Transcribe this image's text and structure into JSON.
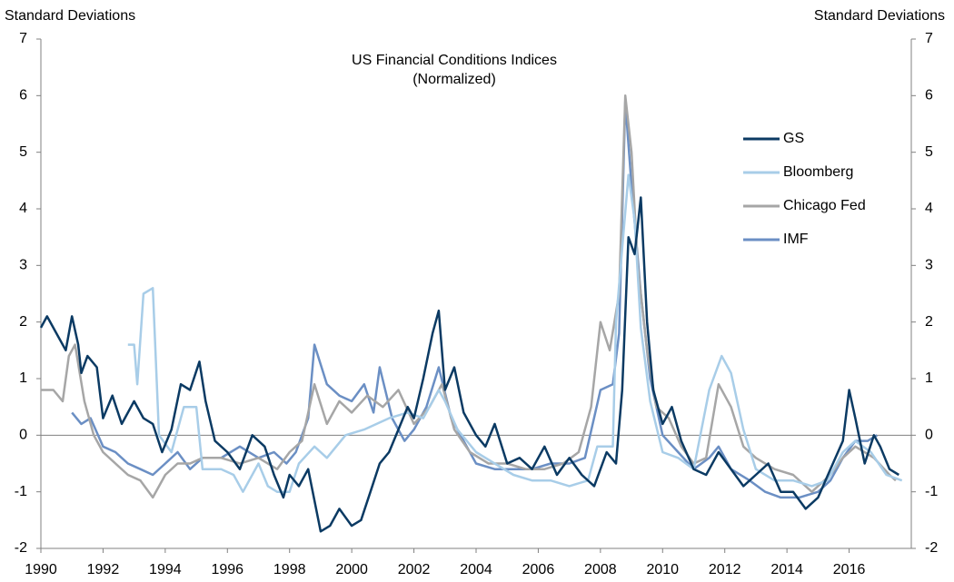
{
  "chart_data": {
    "type": "line",
    "title": "US Financial Conditions Indices",
    "subtitle": "(Normalized)",
    "y_label": "Standard Deviations",
    "y2_label": "Standard Deviations",
    "xlim": [
      1990,
      2018
    ],
    "xticks": [
      1990,
      1992,
      1994,
      1996,
      1998,
      2000,
      2002,
      2004,
      2006,
      2008,
      2010,
      2012,
      2014,
      2016
    ],
    "ylim": [
      -2,
      7
    ],
    "yticks": [
      -2,
      -1,
      0,
      1,
      2,
      3,
      4,
      5,
      6,
      7
    ],
    "y2lim": [
      -2,
      7
    ],
    "y2ticks": [
      -2,
      -1,
      0,
      1,
      2,
      3,
      4,
      5,
      6,
      7
    ],
    "legend": "upper right",
    "series": [
      {
        "name": "GS",
        "color": "#0b3a63",
        "x": [
          1990.0,
          1990.2,
          1990.5,
          1990.8,
          1991.0,
          1991.2,
          1991.3,
          1991.5,
          1991.8,
          1992.0,
          1992.3,
          1992.6,
          1993.0,
          1993.3,
          1993.6,
          1993.9,
          1994.2,
          1994.5,
          1994.8,
          1995.1,
          1995.3,
          1995.6,
          1996.0,
          1996.4,
          1996.8,
          1997.2,
          1997.5,
          1997.8,
          1998.0,
          1998.3,
          1998.6,
          1999.0,
          1999.3,
          1999.6,
          2000.0,
          2000.3,
          2000.6,
          2000.9,
          2001.2,
          2001.5,
          2001.8,
          2002.0,
          2002.3,
          2002.6,
          2002.8,
          2003.0,
          2003.3,
          2003.6,
          2004.0,
          2004.3,
          2004.6,
          2005.0,
          2005.4,
          2005.8,
          2006.2,
          2006.6,
          2007.0,
          2007.4,
          2007.8,
          2008.2,
          2008.5,
          2008.7,
          2008.9,
          2009.1,
          2009.3,
          2009.5,
          2009.7,
          2010.0,
          2010.3,
          2010.6,
          2011.0,
          2011.4,
          2011.8,
          2012.2,
          2012.6,
          2013.0,
          2013.4,
          2013.8,
          2014.2,
          2014.6,
          2015.0,
          2015.4,
          2015.8,
          2016.0,
          2016.2,
          2016.5,
          2016.8,
          2017.0,
          2017.3,
          2017.6
        ],
        "values": [
          1.9,
          2.1,
          1.8,
          1.5,
          2.1,
          1.6,
          1.1,
          1.4,
          1.2,
          0.3,
          0.7,
          0.2,
          0.6,
          0.3,
          0.2,
          -0.3,
          0.1,
          0.9,
          0.8,
          1.3,
          0.6,
          -0.1,
          -0.3,
          -0.6,
          0.0,
          -0.2,
          -0.7,
          -1.1,
          -0.7,
          -0.9,
          -0.6,
          -1.7,
          -1.6,
          -1.3,
          -1.6,
          -1.5,
          -1.0,
          -0.5,
          -0.3,
          0.1,
          0.5,
          0.3,
          1.0,
          1.8,
          2.2,
          0.8,
          1.2,
          0.4,
          0.0,
          -0.2,
          0.2,
          -0.5,
          -0.4,
          -0.6,
          -0.2,
          -0.7,
          -0.4,
          -0.7,
          -0.9,
          -0.3,
          -0.5,
          0.8,
          3.5,
          3.2,
          4.2,
          2.0,
          0.8,
          0.2,
          0.5,
          -0.1,
          -0.6,
          -0.7,
          -0.3,
          -0.6,
          -0.9,
          -0.7,
          -0.5,
          -1.0,
          -1.0,
          -1.3,
          -1.1,
          -0.6,
          -0.1,
          0.8,
          0.3,
          -0.5,
          0.0,
          -0.2,
          -0.6,
          -0.7
        ]
      },
      {
        "name": "Bloomberg",
        "color": "#a8cde8",
        "x": [
          1992.8,
          1993.0,
          1993.1,
          1993.3,
          1993.6,
          1993.8,
          1994.2,
          1994.6,
          1995.0,
          1995.2,
          1995.8,
          1996.2,
          1996.5,
          1997.0,
          1997.3,
          1997.6,
          1998.0,
          1998.3,
          1998.8,
          1999.2,
          1999.8,
          2000.4,
          2000.8,
          2001.2,
          2001.8,
          2002.3,
          2002.8,
          2003.0,
          2003.4,
          2004.0,
          2004.6,
          2005.2,
          2005.8,
          2006.4,
          2007.0,
          2007.6,
          2007.9,
          2008.4,
          2008.5,
          2008.7,
          2008.9,
          2009.1,
          2009.3,
          2009.6,
          2010.0,
          2010.5,
          2011.0,
          2011.5,
          2011.9,
          2012.2,
          2012.6,
          2013.0,
          2013.6,
          2014.2,
          2014.8,
          2015.3,
          2015.8,
          2016.2,
          2016.7,
          2017.2,
          2017.7
        ],
        "values": [
          1.6,
          1.6,
          0.9,
          2.5,
          2.6,
          0.0,
          -0.3,
          0.5,
          0.5,
          -0.6,
          -0.6,
          -0.7,
          -1.0,
          -0.5,
          -0.9,
          -1.0,
          -1.0,
          -0.5,
          -0.2,
          -0.4,
          0.0,
          0.1,
          0.2,
          0.3,
          0.4,
          0.3,
          0.8,
          0.6,
          0.1,
          -0.3,
          -0.5,
          -0.7,
          -0.8,
          -0.8,
          -0.9,
          -0.8,
          -0.2,
          -0.2,
          2.0,
          3.3,
          4.6,
          3.8,
          1.9,
          0.6,
          -0.3,
          -0.4,
          -0.6,
          0.8,
          1.4,
          1.1,
          0.1,
          -0.6,
          -0.8,
          -0.8,
          -0.9,
          -0.8,
          -0.3,
          -0.1,
          -0.3,
          -0.7,
          -0.8
        ]
      },
      {
        "name": "Chicago Fed",
        "color": "#a6a6a6",
        "x": [
          1990.0,
          1990.4,
          1990.7,
          1990.9,
          1991.1,
          1991.4,
          1991.7,
          1992.0,
          1992.4,
          1992.8,
          1993.2,
          1993.6,
          1994.0,
          1994.4,
          1994.8,
          1995.2,
          1995.8,
          1996.4,
          1997.0,
          1997.6,
          1998.0,
          1998.4,
          1998.8,
          1999.2,
          1999.6,
          2000.0,
          2000.5,
          2001.0,
          2001.5,
          2002.0,
          2002.5,
          2002.9,
          2003.3,
          2003.8,
          2004.4,
          2005.0,
          2005.6,
          2006.2,
          2006.8,
          2007.3,
          2007.7,
          2008.0,
          2008.3,
          2008.6,
          2008.8,
          2009.0,
          2009.2,
          2009.5,
          2009.8,
          2010.2,
          2010.6,
          2011.0,
          2011.4,
          2011.8,
          2012.2,
          2012.6,
          2013.0,
          2013.6,
          2014.2,
          2014.8,
          2015.4,
          2015.8,
          2016.2,
          2016.8,
          2017.3,
          2017.5
        ],
        "values": [
          0.8,
          0.8,
          0.6,
          1.4,
          1.6,
          0.6,
          0.0,
          -0.3,
          -0.5,
          -0.7,
          -0.8,
          -1.1,
          -0.7,
          -0.5,
          -0.5,
          -0.4,
          -0.4,
          -0.5,
          -0.4,
          -0.6,
          -0.3,
          -0.1,
          0.9,
          0.2,
          0.6,
          0.4,
          0.7,
          0.5,
          0.8,
          0.2,
          0.5,
          0.9,
          0.1,
          -0.3,
          -0.5,
          -0.5,
          -0.6,
          -0.6,
          -0.5,
          -0.3,
          0.5,
          2.0,
          1.5,
          2.5,
          6.0,
          5.0,
          3.0,
          1.5,
          0.5,
          0.3,
          -0.2,
          -0.5,
          -0.4,
          0.9,
          0.5,
          -0.2,
          -0.4,
          -0.6,
          -0.7,
          -1.0,
          -0.7,
          -0.4,
          -0.2,
          -0.4,
          -0.7,
          -0.8
        ]
      },
      {
        "name": "IMF",
        "color": "#6b8fc4",
        "x": [
          1991.0,
          1991.3,
          1991.6,
          1992.0,
          1992.4,
          1992.8,
          1993.2,
          1993.6,
          1994.0,
          1994.4,
          1994.8,
          1995.2,
          1995.8,
          1996.4,
          1997.0,
          1997.5,
          1997.9,
          1998.2,
          1998.6,
          1998.8,
          1999.2,
          1999.6,
          2000.0,
          2000.4,
          2000.7,
          2000.9,
          2001.3,
          2001.7,
          2002.0,
          2002.4,
          2002.8,
          2003.2,
          2003.6,
          2004.0,
          2004.6,
          2005.2,
          2005.8,
          2006.4,
          2007.0,
          2007.5,
          2008.0,
          2008.4,
          2008.6,
          2008.8,
          2009.0,
          2009.3,
          2009.6,
          2010.0,
          2010.5,
          2011.0,
          2011.5,
          2011.8,
          2012.2,
          2012.8,
          2013.3,
          2013.8,
          2014.4,
          2015.0,
          2015.4,
          2015.8,
          2016.2,
          2016.6,
          2016.9
        ],
        "values": [
          0.4,
          0.2,
          0.3,
          -0.2,
          -0.3,
          -0.5,
          -0.6,
          -0.7,
          -0.5,
          -0.3,
          -0.6,
          -0.4,
          -0.4,
          -0.2,
          -0.4,
          -0.3,
          -0.5,
          -0.3,
          0.3,
          1.6,
          0.9,
          0.7,
          0.6,
          0.9,
          0.4,
          1.2,
          0.3,
          -0.1,
          0.1,
          0.5,
          1.2,
          0.3,
          -0.1,
          -0.5,
          -0.6,
          -0.6,
          -0.6,
          -0.5,
          -0.5,
          -0.4,
          0.8,
          0.9,
          1.8,
          5.9,
          4.4,
          2.5,
          1.0,
          0.0,
          -0.3,
          -0.6,
          -0.4,
          -0.2,
          -0.6,
          -0.8,
          -1.0,
          -1.1,
          -1.1,
          -1.0,
          -0.8,
          -0.4,
          -0.1,
          -0.1,
          0.0
        ]
      }
    ]
  }
}
